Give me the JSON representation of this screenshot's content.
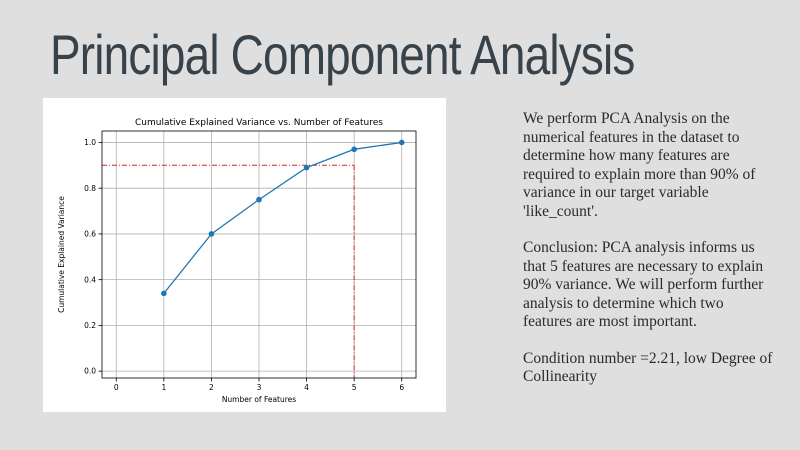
{
  "slide": {
    "title": "Principal Component Analysis",
    "paragraphs": [
      "We perform PCA Analysis on the numerical features in the dataset to determine how many features are required to explain more than 90% of variance in our target variable 'like_count'.",
      "Conclusion: PCA analysis informs us that 5 features are necessary to explain 90% variance. We will perform further analysis to determine which two features are most important.",
      "Condition number =2.21, low Degree of Collinearity"
    ]
  },
  "chart_data": {
    "type": "line",
    "title": "Cumulative Explained Variance vs. Number of Features",
    "xlabel": "Number of Features",
    "ylabel": "Cumulative Explained Variance",
    "x": [
      1,
      2,
      3,
      4,
      5,
      6
    ],
    "series": [
      {
        "values": [
          0.34,
          0.6,
          0.75,
          0.89,
          0.97,
          1.0
        ]
      }
    ],
    "xlim": [
      -0.3,
      6.3
    ],
    "ylim": [
      -0.03,
      1.05
    ],
    "xticks": [
      0,
      1,
      2,
      3,
      4,
      5,
      6
    ],
    "yticks": [
      0.0,
      0.2,
      0.4,
      0.6,
      0.8,
      1.0
    ],
    "xtick_labels": [
      "0",
      "1",
      "2",
      "3",
      "4",
      "5",
      "6"
    ],
    "ytick_labels": [
      "0.0",
      "0.2",
      "0.4",
      "0.6",
      "0.8",
      "1.0"
    ],
    "grid": true,
    "threshold": {
      "y": 0.9,
      "x": 5
    },
    "colors": {
      "line": "#1f77b4",
      "threshold": "#d62728",
      "grid": "#b0b0b0"
    }
  }
}
